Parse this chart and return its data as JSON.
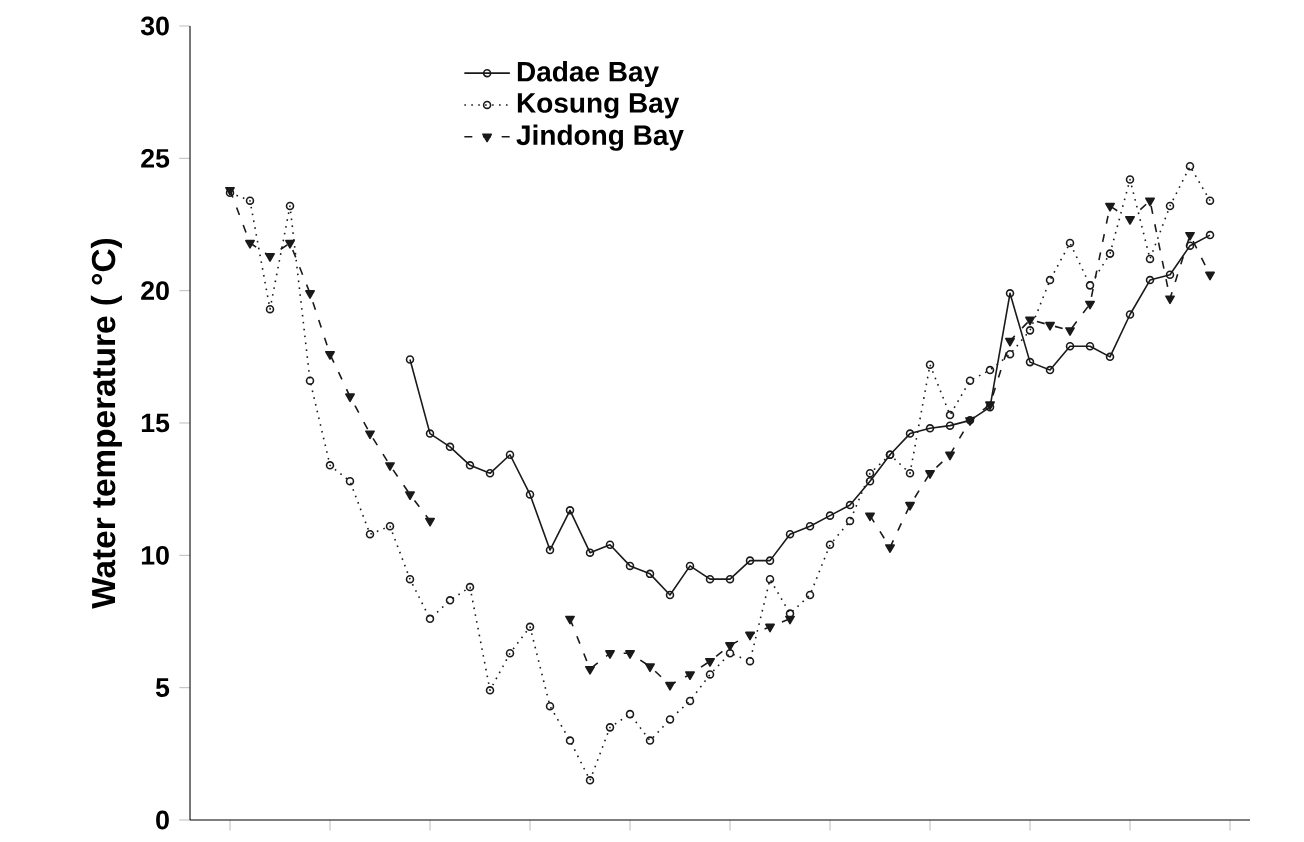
{
  "chart_data": {
    "type": "line",
    "ylabel": "Water temperature ( °C)",
    "categories": [
      null,
      null,
      null,
      null,
      null,
      null,
      null,
      null,
      null,
      null,
      null,
      null,
      null,
      null,
      null,
      null,
      null,
      null,
      null,
      null,
      null,
      null,
      null,
      null,
      null,
      null,
      null,
      null,
      null,
      null,
      null,
      null,
      null,
      null,
      null,
      null,
      null,
      null,
      null,
      null,
      null,
      null,
      null,
      null,
      null,
      null,
      null,
      null,
      null,
      null
    ],
    "ylim": [
      0,
      30
    ],
    "yticks": [
      0,
      5,
      10,
      15,
      20,
      25,
      30
    ],
    "legend": "top",
    "series": [
      {
        "name": "Dadae Bay",
        "color": "#1a1a1a",
        "marker": "circle",
        "line_style": "solid",
        "values": [
          null,
          null,
          null,
          null,
          null,
          null,
          null,
          null,
          null,
          17.4,
          14.6,
          14.1,
          13.4,
          13.1,
          13.8,
          12.3,
          10.2,
          11.7,
          10.1,
          10.4,
          9.6,
          9.3,
          8.5,
          9.6,
          9.1,
          9.1,
          9.8,
          9.8,
          10.8,
          11.1,
          11.5,
          11.9,
          12.8,
          13.8,
          14.6,
          14.8,
          14.9,
          15.1,
          15.6,
          19.9,
          17.3,
          17.0,
          17.9,
          17.9,
          17.5,
          19.1,
          20.4,
          20.6,
          21.7,
          22.1
        ]
      },
      {
        "name": "Kosung Bay",
        "color": "#1a1a1a",
        "marker": "circle",
        "line_style": "dotted",
        "values": [
          23.7,
          23.4,
          19.3,
          23.2,
          16.6,
          13.4,
          12.8,
          10.8,
          11.1,
          9.1,
          7.6,
          8.3,
          8.8,
          4.9,
          6.3,
          7.3,
          4.3,
          3.0,
          1.5,
          3.5,
          4.0,
          3.0,
          3.8,
          4.5,
          5.5,
          6.3,
          6.0,
          9.1,
          7.8,
          8.5,
          10.4,
          11.3,
          13.1,
          13.8,
          13.1,
          17.2,
          15.3,
          16.6,
          17.0,
          17.6,
          18.5,
          20.4,
          21.8,
          20.2,
          21.4,
          24.2,
          21.2,
          23.2,
          24.7,
          23.4
        ]
      },
      {
        "name": "Jindong Bay",
        "color": "#1a1a1a",
        "marker": "triangle",
        "line_style": "dashed",
        "values": [
          23.8,
          21.8,
          21.3,
          21.8,
          19.9,
          17.6,
          16.0,
          14.6,
          13.4,
          12.3,
          11.3,
          null,
          null,
          null,
          null,
          null,
          null,
          7.6,
          5.7,
          6.3,
          6.3,
          5.8,
          5.1,
          5.5,
          6.0,
          6.6,
          7.0,
          7.3,
          7.6,
          null,
          null,
          null,
          11.5,
          10.3,
          11.9,
          13.1,
          13.8,
          15.1,
          15.7,
          18.1,
          18.9,
          18.7,
          18.5,
          19.5,
          23.2,
          22.7,
          23.4,
          19.7,
          22.1,
          20.6
        ]
      }
    ]
  }
}
